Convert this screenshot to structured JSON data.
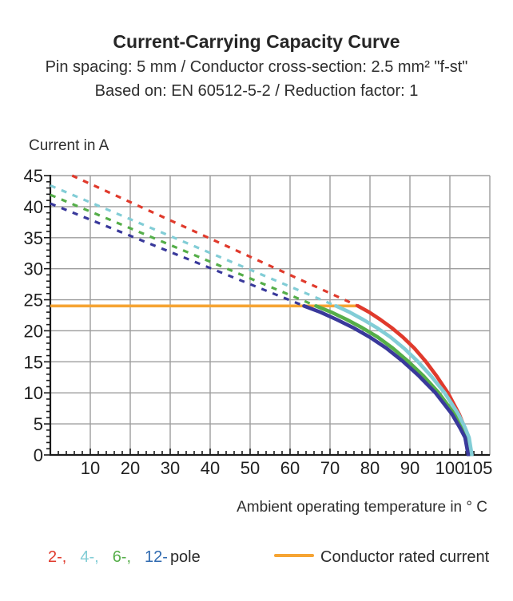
{
  "header": {
    "title": "Current-Carrying Capacity Curve",
    "subtitle1": "Pin spacing: 5 mm / Conductor cross-section: 2.5 mm² \"f-st\"",
    "subtitle2": "Based on: EN 60512-5-2 / Reduction factor: 1"
  },
  "axes": {
    "y_title": "Current in A",
    "x_title": "Ambient operating temperature in ° C"
  },
  "legend": {
    "pole_items": [
      {
        "label": "2-,",
        "color": "#e03a2c"
      },
      {
        "label": "4-,",
        "color": "#82cdd6"
      },
      {
        "label": "6-,",
        "color": "#55ae49"
      },
      {
        "label": "12-",
        "color": "#2f6ab0"
      }
    ],
    "pole_suffix": "pole",
    "rated_label": "Conductor rated current",
    "rated_color": "#f6a433"
  },
  "chart_data": {
    "type": "line",
    "title": "Current-Carrying Capacity Curve",
    "xlabel": "Ambient operating temperature in °C",
    "ylabel": "Current in A",
    "xlim": [
      0,
      110
    ],
    "ylim": [
      0,
      45
    ],
    "grid": true,
    "grid_color": "#9d9d9d",
    "axis_color": "#1a1a1a",
    "x_gridlines": [
      10,
      20,
      30,
      40,
      50,
      60,
      70,
      80,
      90,
      100,
      110
    ],
    "y_gridlines": [
      5,
      10,
      15,
      20,
      25,
      30,
      35,
      40,
      45
    ],
    "x_minor_step": 2,
    "y_minor_step": 1,
    "x_tick_labels": [
      {
        "v": 10,
        "t": "10"
      },
      {
        "v": 20,
        "t": "20"
      },
      {
        "v": 30,
        "t": "30"
      },
      {
        "v": 40,
        "t": "40"
      },
      {
        "v": 50,
        "t": "50"
      },
      {
        "v": 60,
        "t": "60"
      },
      {
        "v": 70,
        "t": "70"
      },
      {
        "v": 80,
        "t": "80"
      },
      {
        "v": 90,
        "t": "90"
      },
      {
        "v": 100,
        "t": "100"
      },
      {
        "v": 105,
        "t": "105",
        "dx": 10
      }
    ],
    "y_tick_labels": [
      {
        "v": 0,
        "t": "0"
      },
      {
        "v": 5,
        "t": "5"
      },
      {
        "v": 10,
        "t": "10"
      },
      {
        "v": 15,
        "t": "15"
      },
      {
        "v": 20,
        "t": "20"
      },
      {
        "v": 25,
        "t": "25"
      },
      {
        "v": 30,
        "t": "30"
      },
      {
        "v": 35,
        "t": "35"
      },
      {
        "v": 40,
        "t": "40"
      },
      {
        "v": 45,
        "t": "45"
      }
    ],
    "rated_current": {
      "label": "Conductor rated current",
      "value": 24,
      "x_start": 0,
      "x_end": 77.2,
      "color": "#f6a433"
    },
    "series": [
      {
        "name": "2-pole",
        "color": "#e03a2c",
        "dashed": [
          [
            0,
            46.6
          ],
          [
            77,
            24
          ]
        ],
        "solid": [
          [
            77,
            24
          ],
          [
            79.8,
            23
          ],
          [
            82.6,
            21.8
          ],
          [
            85.4,
            20.5
          ],
          [
            88.2,
            19
          ],
          [
            91.1,
            17.2
          ],
          [
            93.9,
            15.1
          ],
          [
            96.7,
            12.7
          ],
          [
            99.5,
            10
          ],
          [
            102.3,
            6.6
          ],
          [
            103.7,
            4.4
          ],
          [
            104.5,
            2.8
          ],
          [
            105.1,
            0
          ]
        ]
      },
      {
        "name": "4-pole",
        "color": "#82cdd6",
        "dashed": [
          [
            0,
            43.4
          ],
          [
            71.5,
            24
          ]
        ],
        "solid": [
          [
            71.5,
            24
          ],
          [
            74.9,
            23
          ],
          [
            78.3,
            21.8
          ],
          [
            81.7,
            20.5
          ],
          [
            85.1,
            19
          ],
          [
            88.5,
            17.2
          ],
          [
            91.9,
            15.1
          ],
          [
            95.3,
            12.7
          ],
          [
            98.7,
            10
          ],
          [
            102.1,
            6.6
          ],
          [
            103.8,
            4.4
          ],
          [
            104.8,
            2.8
          ],
          [
            105.5,
            0
          ]
        ]
      },
      {
        "name": "6-pole",
        "color": "#55ae49",
        "dashed": [
          [
            0,
            41.9
          ],
          [
            66.5,
            24
          ]
        ],
        "solid": [
          [
            66.5,
            24
          ],
          [
            70.3,
            23
          ],
          [
            74.2,
            21.8
          ],
          [
            78,
            20.5
          ],
          [
            81.9,
            19
          ],
          [
            85.7,
            17.2
          ],
          [
            89.5,
            15.1
          ],
          [
            93.4,
            12.7
          ],
          [
            97.2,
            10
          ],
          [
            101.1,
            6.6
          ],
          [
            103,
            4.4
          ],
          [
            104.1,
            2.8
          ],
          [
            104.9,
            0
          ]
        ]
      },
      {
        "name": "12-pole",
        "color": "#39399b",
        "dashed": [
          [
            0,
            40.5
          ],
          [
            63.5,
            24
          ]
        ],
        "solid": [
          [
            63.5,
            24
          ],
          [
            67.6,
            23
          ],
          [
            71.7,
            21.8
          ],
          [
            75.8,
            20.5
          ],
          [
            79.9,
            19
          ],
          [
            84.1,
            17.2
          ],
          [
            88.2,
            15.1
          ],
          [
            92.3,
            12.7
          ],
          [
            96.4,
            10
          ],
          [
            100.5,
            6.6
          ],
          [
            102.5,
            4.4
          ],
          [
            103.8,
            2.8
          ],
          [
            104.6,
            0
          ]
        ]
      }
    ]
  }
}
